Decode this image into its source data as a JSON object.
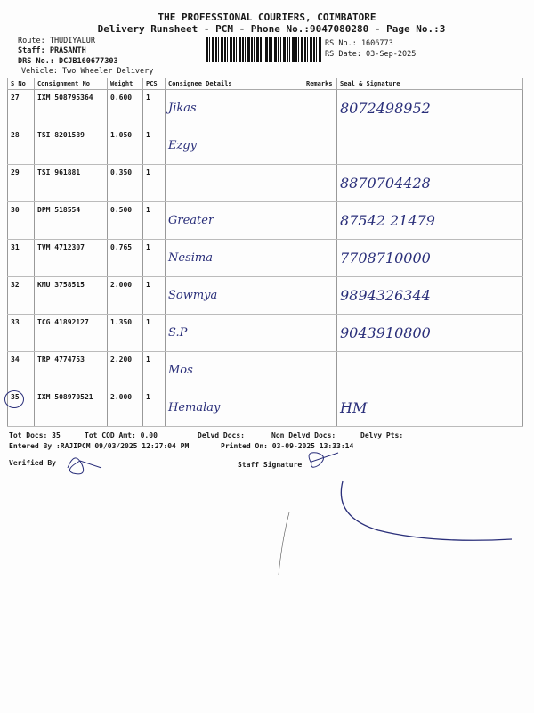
{
  "header": {
    "company": "THE PROFESSIONAL COURIERS, COIMBATORE",
    "title": "Delivery Runsheet - PCM - Phone No.:9047080280 - Page No.:3",
    "route": "Route: THUDIYALUR",
    "staff": "Staff: PRASANTH",
    "drs": "DRS No.: DCJB160677303",
    "vehicle": "Vehicle: Two Wheeler Delivery",
    "rs_no": "RS No.: 1606773",
    "rs_date": "RS Date: 03-Sep-2025"
  },
  "columns": [
    "S No",
    "Consignment No",
    "Weight",
    "PCS",
    "Consignee Details",
    "Remarks",
    "Seal & Signature"
  ],
  "rows": [
    {
      "sno": "27",
      "cn": "IXM 508795364",
      "wt": "0.600",
      "pcs": "1",
      "consignee": "Jikas",
      "seal": "8072498952"
    },
    {
      "sno": "28",
      "cn": "TSI 8201589",
      "wt": "1.050",
      "pcs": "1",
      "consignee": "Ezgy",
      "seal": ""
    },
    {
      "sno": "29",
      "cn": "TSI 961881",
      "wt": "0.350",
      "pcs": "1",
      "consignee": "",
      "seal": "8870704428"
    },
    {
      "sno": "30",
      "cn": "DPM 518554",
      "wt": "0.500",
      "pcs": "1",
      "consignee": "Greater",
      "seal": "87542 21479"
    },
    {
      "sno": "31",
      "cn": "TVM 4712307",
      "wt": "0.765",
      "pcs": "1",
      "consignee": "Nesima",
      "seal": "7708710000"
    },
    {
      "sno": "32",
      "cn": "KMU 3758515",
      "wt": "2.000",
      "pcs": "1",
      "consignee": "Sowmya",
      "seal": "9894326344"
    },
    {
      "sno": "33",
      "cn": "TCG 41892127",
      "wt": "1.350",
      "pcs": "1",
      "consignee": "S.P",
      "seal": "9043910800"
    },
    {
      "sno": "34",
      "cn": "TRP 4774753",
      "wt": "2.200",
      "pcs": "1",
      "consignee": "Mos",
      "seal": ""
    },
    {
      "sno": "35",
      "cn": "IXM 508970521",
      "wt": "2.000",
      "pcs": "1",
      "consignee": "Hemalay",
      "seal": "HM"
    }
  ],
  "footer": {
    "tot_docs": "Tot Docs:  35",
    "tot_cod": "Tot COD Amt:    0.00",
    "delvd": "Delvd Docs:",
    "non_delvd": "Non Delvd Docs:",
    "delvy_pts": "Delvy Pts:",
    "entered": "Entered By :RAJIPCM 09/03/2025 12:27:04 PM",
    "printed": "Printed On: 03-09-2025 13:33:14",
    "verified": "Verified By",
    "staff_sig": "Staff Signature"
  },
  "colors": {
    "ink": "#2a2f7a"
  }
}
